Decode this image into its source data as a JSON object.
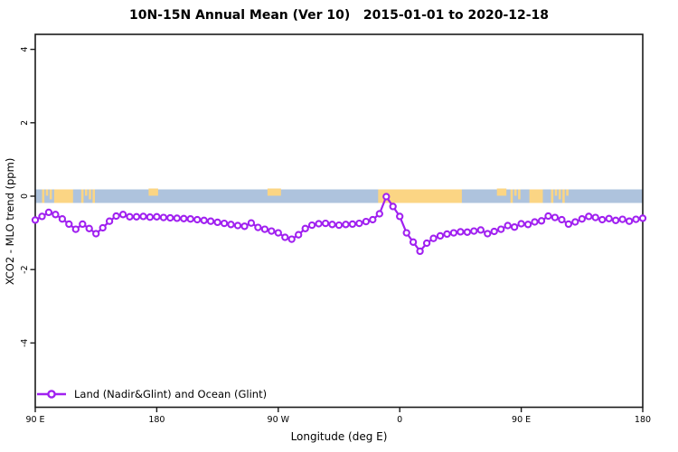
{
  "colors": {
    "line": "#a020f0",
    "marker_fill": "#ffffff",
    "ocean": "#aec3dd",
    "land": "#fbd584",
    "axis": "#1a1a1a"
  },
  "legend": {
    "label": "Land (Nadir&Glint) and Ocean (Glint)"
  },
  "chart_data": {
    "type": "line",
    "title": "10N-15N Annual Mean (Ver 10)   2015-01-01 to 2020-12-18",
    "xlabel": "Longitude (deg E)",
    "ylabel": "XCO2 - MLO trend (ppm)",
    "xlim": [
      90,
      540
    ],
    "ylim": [
      -5.75,
      4.41
    ],
    "grid": false,
    "legend_position": "bottom-left",
    "x_ticks": [
      {
        "value": 90,
        "label": "90 E"
      },
      {
        "value": 180,
        "label": "180"
      },
      {
        "value": 270,
        "label": "90 W"
      },
      {
        "value": 360,
        "label": "0"
      },
      {
        "value": 450,
        "label": "90 E"
      },
      {
        "value": 540,
        "label": "180"
      }
    ],
    "y_ticks": [
      {
        "value": -4,
        "label": "-4"
      },
      {
        "value": -2,
        "label": "-2"
      },
      {
        "value": 0,
        "label": "0"
      },
      {
        "value": 2,
        "label": "2"
      },
      {
        "value": 4,
        "label": "4"
      }
    ],
    "x": [
      90,
      95,
      100,
      105,
      110,
      115,
      120,
      125,
      130,
      135,
      140,
      145,
      150,
      155,
      160,
      165,
      170,
      175,
      180,
      185,
      190,
      195,
      200,
      205,
      210,
      215,
      220,
      225,
      230,
      235,
      240,
      245,
      250,
      255,
      260,
      265,
      270,
      275,
      280,
      285,
      290,
      295,
      300,
      305,
      310,
      315,
      320,
      325,
      330,
      335,
      340,
      345,
      350,
      355,
      360,
      365,
      370,
      375,
      380,
      385,
      390,
      395,
      400,
      405,
      410,
      415,
      420,
      425,
      430,
      435,
      440,
      445,
      450,
      455,
      460,
      465,
      470,
      475,
      480,
      485,
      490,
      495,
      500,
      505,
      510,
      515,
      520,
      525,
      530,
      535,
      540
    ],
    "series": [
      {
        "name": "Land (Nadir&Glint) and Ocean (Glint)",
        "color": "#a020f0",
        "values": [
          -0.65,
          -0.55,
          -0.44,
          -0.5,
          -0.62,
          -0.76,
          -0.9,
          -0.76,
          -0.88,
          -1.02,
          -0.86,
          -0.68,
          -0.54,
          -0.5,
          -0.56,
          -0.56,
          -0.55,
          -0.57,
          -0.56,
          -0.58,
          -0.59,
          -0.6,
          -0.61,
          -0.62,
          -0.64,
          -0.66,
          -0.68,
          -0.71,
          -0.74,
          -0.77,
          -0.8,
          -0.82,
          -0.73,
          -0.85,
          -0.9,
          -0.95,
          -1.0,
          -1.12,
          -1.17,
          -1.05,
          -0.88,
          -0.79,
          -0.75,
          -0.74,
          -0.77,
          -0.79,
          -0.77,
          -0.76,
          -0.74,
          -0.69,
          -0.64,
          -0.48,
          -0.01,
          -0.28,
          -0.55,
          -1.0,
          -1.25,
          -1.5,
          -1.28,
          -1.15,
          -1.08,
          -1.03,
          -1.0,
          -0.97,
          -0.98,
          -0.95,
          -0.92,
          -1.02,
          -0.96,
          -0.9,
          -0.8,
          -0.84,
          -0.75,
          -0.77,
          -0.7,
          -0.67,
          -0.54,
          -0.58,
          -0.64,
          -0.76,
          -0.7,
          -0.62,
          -0.55,
          -0.58,
          -0.64,
          -0.61,
          -0.66,
          -0.63,
          -0.68,
          -0.63,
          -0.6
        ]
      }
    ],
    "zero_band": {
      "center_value": 0,
      "ocean_color": "#aec3dd",
      "land_color": "#fbd584",
      "land_segments": [
        {
          "from": 95,
          "to": 101,
          "style": "speckle"
        },
        {
          "from": 104,
          "to": 118,
          "style": "solid"
        },
        {
          "from": 124,
          "to": 134,
          "style": "speckle"
        },
        {
          "from": 174,
          "to": 181,
          "style": "top"
        },
        {
          "from": 262,
          "to": 272,
          "style": "top"
        },
        {
          "from": 344,
          "to": 406,
          "style": "solid"
        },
        {
          "from": 432,
          "to": 439,
          "style": "top"
        },
        {
          "from": 442,
          "to": 449,
          "style": "speckle"
        },
        {
          "from": 456,
          "to": 466,
          "style": "solid"
        },
        {
          "from": 472,
          "to": 486,
          "style": "speckle"
        }
      ]
    }
  }
}
